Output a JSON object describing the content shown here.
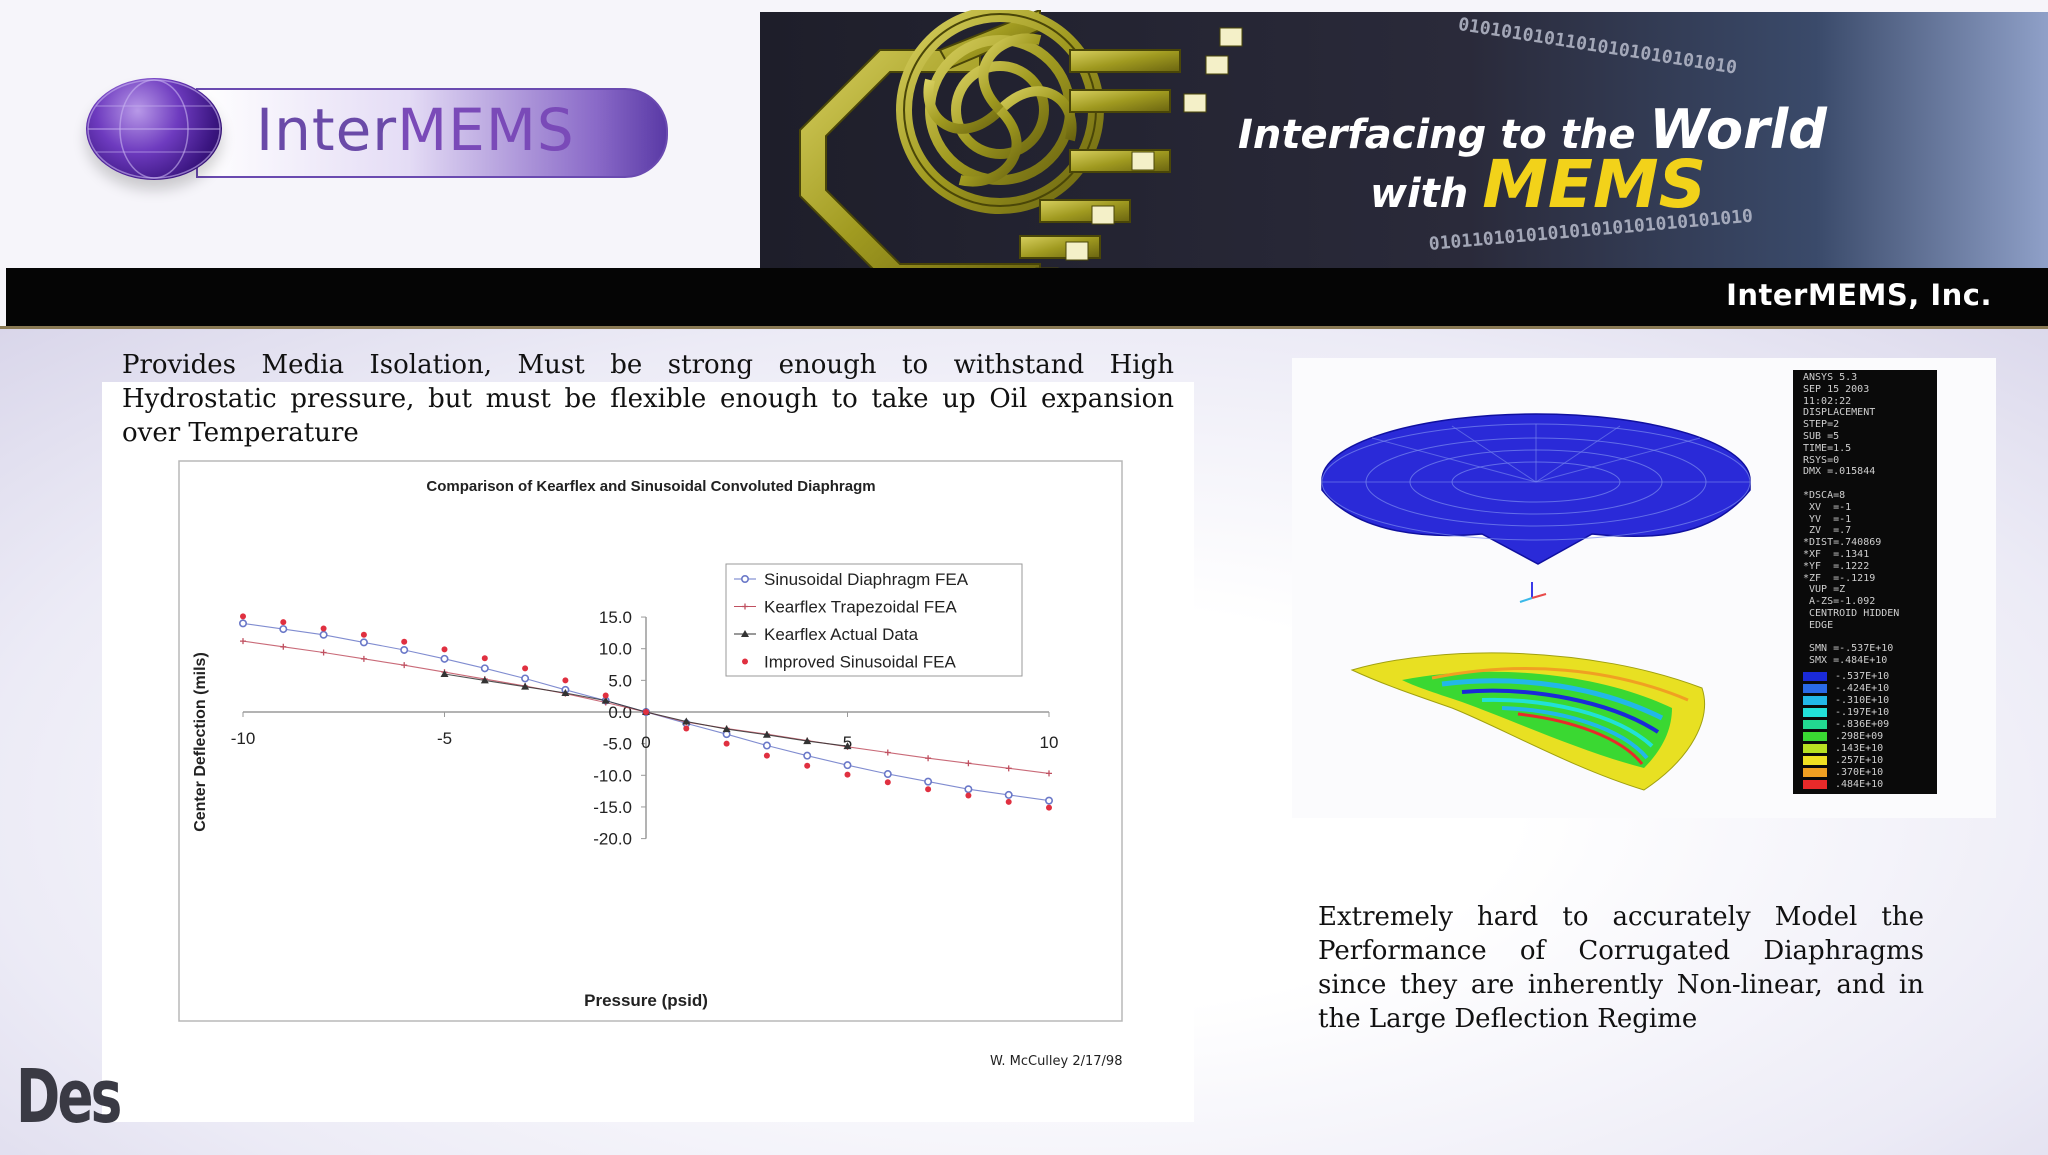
{
  "banner": {
    "logo_text_a": "Inter",
    "logo_text_b": "MEMS",
    "tagline_part1": "Interfacing to the",
    "tagline_part2": "World",
    "tagline_part3": "with",
    "tagline_part4": "MEMS",
    "binary_top": "01010101011010101010101010",
    "binary_bottom": "010110101010101010101010101010",
    "company": "InterMEMS, Inc.",
    "colors": {
      "dark": "#1e1e2a",
      "accent_yellow": "#f2d21a",
      "logo_purple": "#6a4aa8"
    }
  },
  "slide": {
    "intro_text": "Provides Media Isolation, Must be strong enough to withstand High Hydrostatic pressure, but must be flexible enough to take up Oil expansion over Temperature",
    "model_text": "Extremely hard to accurately Model the Performance of Corrugated Diaphragms since they are inherently Non-linear, and in the Large Deflection Regime",
    "author_note": "W. McCulley  2/17/98",
    "watermark": "Design World"
  },
  "chart_data": {
    "type": "line",
    "title": "Comparison of Kearflex and Sinusoidal Convoluted Diaphragm",
    "xlabel": "Pressure (psid)",
    "ylabel": "Center Deflection (mils)",
    "xlim": [
      -10,
      10
    ],
    "ylim": [
      -20,
      15
    ],
    "x_ticks": [
      "-10",
      "-5",
      "0",
      "5",
      "10"
    ],
    "y_ticks": [
      "15.0",
      "10.0",
      "5.0",
      "0.0",
      "-5.0",
      "-10.0",
      "-15.0",
      "-20.0"
    ],
    "legend_position": "upper-right",
    "series": [
      {
        "name": "Sinusoidal Diaphragm FEA",
        "color": "#6a78c8",
        "marker": "circle-open",
        "x": [
          -10,
          -9,
          -8,
          -7,
          -6,
          -5,
          -4,
          -3,
          -2,
          -1,
          0,
          1,
          2,
          3,
          4,
          5,
          6,
          7,
          8,
          9,
          10
        ],
        "y": [
          14.0,
          13.1,
          12.2,
          11.0,
          9.8,
          8.4,
          6.9,
          5.3,
          3.5,
          1.8,
          0,
          -1.8,
          -3.5,
          -5.3,
          -6.9,
          -8.4,
          -9.8,
          -11.0,
          -12.2,
          -13.1,
          -14.0
        ]
      },
      {
        "name": "Kearflex Trapezoidal FEA",
        "color": "#c05060",
        "marker": "plus",
        "x": [
          -10,
          -9,
          -8,
          -7,
          -6,
          -5,
          -4,
          -3,
          -2,
          -1,
          0,
          1,
          2,
          3,
          4,
          5,
          6,
          7,
          8,
          9,
          10
        ],
        "y": [
          11.2,
          10.3,
          9.4,
          8.4,
          7.4,
          6.3,
          5.2,
          4.1,
          2.9,
          1.5,
          0,
          -1.6,
          -2.6,
          -3.5,
          -4.5,
          -5.5,
          -6.4,
          -7.3,
          -8.1,
          -8.9,
          -9.7
        ]
      },
      {
        "name": "Kearflex Actual Data",
        "color": "#333333",
        "marker": "triangle",
        "x": [
          -5,
          -4,
          -3,
          -2,
          -1,
          0,
          1,
          2,
          3,
          4,
          5
        ],
        "y": [
          6.0,
          5.0,
          4.0,
          3.0,
          1.8,
          0,
          -1.5,
          -2.7,
          -3.6,
          -4.6,
          -5.4
        ]
      },
      {
        "name": "Improved Sinusoidal FEA",
        "color": "#e03040",
        "marker": "dot",
        "x": [
          -10,
          -9,
          -8,
          -7,
          -6,
          -5,
          -4,
          -3,
          -2,
          -1,
          0,
          1,
          2,
          3,
          4,
          5,
          6,
          7,
          8,
          9,
          10
        ],
        "y": [
          15.1,
          14.2,
          13.2,
          12.2,
          11.1,
          9.9,
          8.5,
          6.9,
          5.0,
          2.6,
          0,
          -2.6,
          -5.0,
          -6.9,
          -8.5,
          -9.9,
          -11.1,
          -12.2,
          -13.2,
          -14.2,
          -15.1
        ]
      }
    ]
  },
  "fea": {
    "ansys_lines": [
      "ANSYS 5.3",
      "SEP 15 2003",
      "11:02:22",
      "DISPLACEMENT",
      "STEP=2",
      "SUB =5",
      "TIME=1.5",
      "RSYS=0",
      "DMX =.015844",
      "",
      "*DSCA=8",
      " XV  =-1",
      " YV  =-1",
      " ZV  =.7",
      "*DIST=.740869",
      "*XF  =.1341",
      "*YF  =.1222",
      "*ZF  =-.1219",
      " VUP =Z",
      " A-ZS=-1.092",
      " CENTROID HIDDEN",
      " EDGE",
      "",
      " SMN =-.537E+10",
      " SMX =.484E+10"
    ],
    "legend": [
      {
        "label": "-.537E+10",
        "color": "#1a2ad8"
      },
      {
        "label": "-.424E+10",
        "color": "#2a6ae8"
      },
      {
        "label": "-.310E+10",
        "color": "#22b8e8"
      },
      {
        "label": "-.197E+10",
        "color": "#22e0d8"
      },
      {
        "label": "-.836E+09",
        "color": "#22d890"
      },
      {
        "label": ".298E+09",
        "color": "#3ad832"
      },
      {
        "label": ".143E+10",
        "color": "#b8e022"
      },
      {
        "label": ".257E+10",
        "color": "#f0e022"
      },
      {
        "label": ".370E+10",
        "color": "#f0a022"
      },
      {
        "label": ".484E+10",
        "color": "#e82a2a"
      }
    ]
  }
}
